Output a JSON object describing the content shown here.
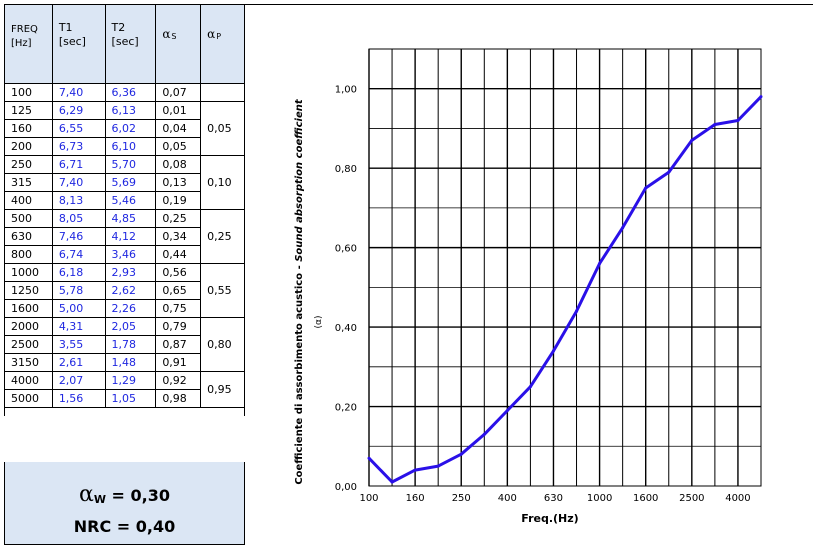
{
  "table": {
    "headers": {
      "freq": [
        "FREQ",
        "[Hz]"
      ],
      "t1": [
        "T1",
        "[sec]"
      ],
      "t2": [
        "T2",
        "[sec]"
      ],
      "as_greek": "α",
      "as_sub": "S",
      "ap_greek": "α",
      "ap_sub": "P"
    },
    "rows": [
      {
        "freq": "100",
        "t1": "7,40",
        "t2": "6,36",
        "as": "0,07"
      },
      {
        "freq": "125",
        "t1": "6,29",
        "t2": "6,13",
        "as": "0,01"
      },
      {
        "freq": "160",
        "t1": "6,55",
        "t2": "6,02",
        "as": "0,04"
      },
      {
        "freq": "200",
        "t1": "6,73",
        "t2": "6,10",
        "as": "0,05"
      },
      {
        "freq": "250",
        "t1": "6,71",
        "t2": "5,70",
        "as": "0,08"
      },
      {
        "freq": "315",
        "t1": "7,40",
        "t2": "5,69",
        "as": "0,13"
      },
      {
        "freq": "400",
        "t1": "8,13",
        "t2": "5,46",
        "as": "0,19"
      },
      {
        "freq": "500",
        "t1": "8,05",
        "t2": "4,85",
        "as": "0,25"
      },
      {
        "freq": "630",
        "t1": "7,46",
        "t2": "4,12",
        "as": "0,34"
      },
      {
        "freq": "800",
        "t1": "6,74",
        "t2": "3,46",
        "as": "0,44"
      },
      {
        "freq": "1000",
        "t1": "6,18",
        "t2": "2,93",
        "as": "0,56"
      },
      {
        "freq": "1250",
        "t1": "5,78",
        "t2": "2,62",
        "as": "0,65"
      },
      {
        "freq": "1600",
        "t1": "5,00",
        "t2": "2,26",
        "as": "0,75"
      },
      {
        "freq": "2000",
        "t1": "4,31",
        "t2": "2,05",
        "as": "0,79"
      },
      {
        "freq": "2500",
        "t1": "3,55",
        "t2": "1,78",
        "as": "0,87"
      },
      {
        "freq": "3150",
        "t1": "2,61",
        "t2": "1,48",
        "as": "0,91"
      },
      {
        "freq": "4000",
        "t1": "2,07",
        "t2": "1,29",
        "as": "0,92"
      },
      {
        "freq": "5000",
        "t1": "1,56",
        "t2": "1,05",
        "as": "0,98"
      }
    ],
    "alpha_p": [
      "0,05",
      "0,10",
      "0,25",
      "0,55",
      "0,80",
      "0,95"
    ]
  },
  "summary": {
    "aw_alpha": "α",
    "aw_sub": "W",
    "aw_value": " = 0,30",
    "nrc": "NRC = 0,40"
  },
  "colors": {
    "table_header_bg": "#dbe6f4",
    "t_values": "#1f27e0",
    "curve": "#2a10e8"
  },
  "chart_data": {
    "type": "line",
    "x": [
      100,
      125,
      160,
      200,
      250,
      315,
      400,
      500,
      630,
      800,
      1000,
      1250,
      1600,
      2000,
      2500,
      3150,
      4000,
      5000
    ],
    "series": [
      {
        "values": [
          0.07,
          0.01,
          0.04,
          0.05,
          0.08,
          0.13,
          0.19,
          0.25,
          0.34,
          0.44,
          0.56,
          0.65,
          0.75,
          0.79,
          0.87,
          0.91,
          0.92,
          0.98
        ]
      }
    ],
    "x_tick_labels": [
      "100",
      "160",
      "250",
      "400",
      "630",
      "1000",
      "1600",
      "2500",
      "4000"
    ],
    "y_tick_labels": [
      "0,00",
      "0,20",
      "0,40",
      "0,60",
      "0,80",
      "1,00"
    ],
    "y_ticks": [
      0,
      0.2,
      0.4,
      0.6,
      0.8,
      1.0
    ],
    "xlabel": "Freq.(Hz)",
    "ylabel_normal": "Coefficiente di assorbimento acustico - ",
    "ylabel_italic": "Sound absorption coefficient",
    "ylabel_symbol": "(α)",
    "xscale": "log (third-octave bands)",
    "ylim": [
      0,
      1.1
    ],
    "grid": true
  }
}
